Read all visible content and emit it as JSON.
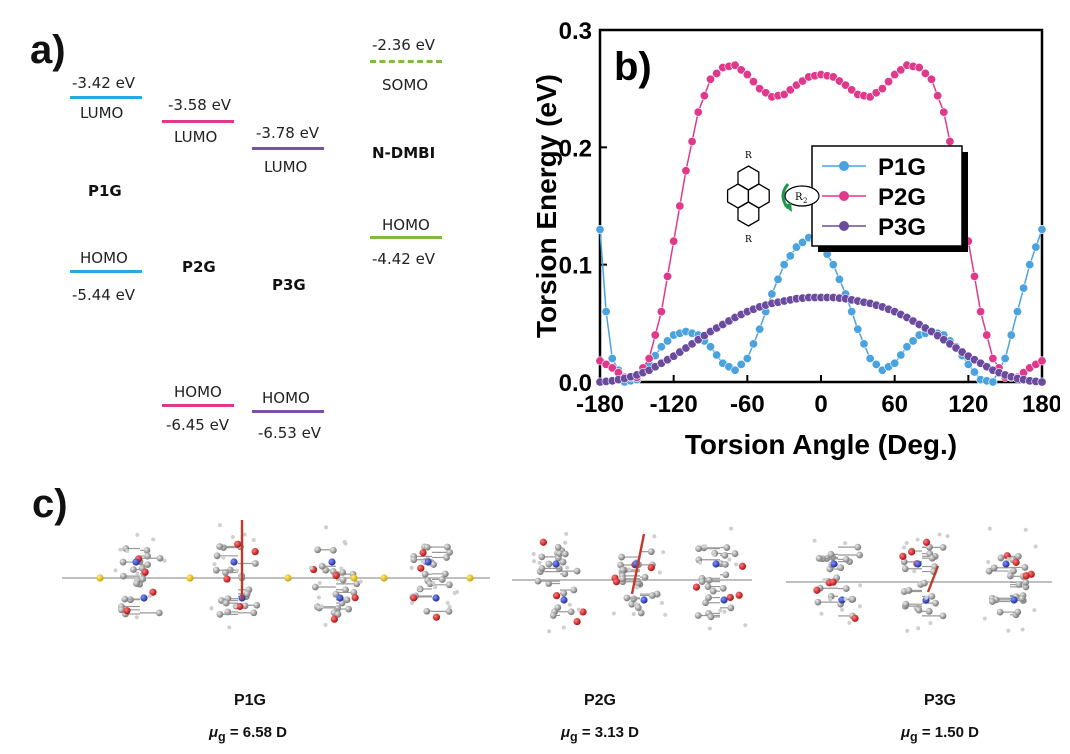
{
  "panel_a": {
    "label": "a)",
    "p1g": {
      "name": "P1G",
      "lumo_energy": "-3.42 eV",
      "lumo_label": "LUMO",
      "homo_label": "HOMO",
      "homo_energy": "-5.44 eV",
      "color": "#29a8e0"
    },
    "p2g": {
      "name": "P2G",
      "lumo_energy": "-3.58 eV",
      "lumo_label": "LUMO",
      "homo_label": "HOMO",
      "homo_energy": "-6.45 eV",
      "color": "#e0398c"
    },
    "p3g": {
      "name": "P3G",
      "lumo_energy": "-3.78 eV",
      "lumo_label": "LUMO",
      "homo_label": "HOMO",
      "homo_energy": "-6.53 eV",
      "color": "#7b4fa8"
    },
    "ndmbi": {
      "name": "N-DMBI",
      "somo_energy": "-2.36 eV",
      "somo_label": "SOMO",
      "homo_label": "HOMO",
      "homo_energy": "-4.42 eV",
      "color": "#7dbb42"
    }
  },
  "panel_b_label": "b)",
  "molecule": {
    "r": "R",
    "r2": "R",
    "r2_sub": "2"
  },
  "chart_data": {
    "type": "line",
    "xlabel": "Torsion Angle (Deg.)",
    "ylabel": "Torsion Energy (eV)",
    "xlim": [
      -180,
      180
    ],
    "ylim": [
      0,
      0.3
    ],
    "xticks": [
      "-180",
      "-120",
      "-60",
      "0",
      "60",
      "120",
      "180"
    ],
    "yticks": [
      "0.0",
      "0.1",
      "0.2",
      "0.3"
    ],
    "legend": "top-right",
    "series": [
      {
        "name": "P1G",
        "color": "#4aa3df",
        "x": [
          -180,
          -175,
          -170,
          -160,
          -150,
          -140,
          -130,
          -120,
          -110,
          -100,
          -90,
          -80,
          -70,
          -60,
          -50,
          -40,
          -30,
          -20,
          -10,
          0,
          10,
          20,
          30,
          40,
          50,
          60,
          70,
          80,
          90,
          100,
          110,
          120,
          130,
          140,
          150,
          160,
          170,
          175,
          180
        ],
        "y": [
          0.13,
          0.06,
          0.02,
          0.0,
          0.002,
          0.015,
          0.03,
          0.04,
          0.043,
          0.04,
          0.03,
          0.016,
          0.01,
          0.02,
          0.045,
          0.075,
          0.1,
          0.115,
          0.123,
          0.118,
          0.1,
          0.075,
          0.045,
          0.02,
          0.01,
          0.016,
          0.03,
          0.04,
          0.043,
          0.04,
          0.03,
          0.015,
          0.002,
          0.0,
          0.02,
          0.06,
          0.1,
          0.115,
          0.13
        ]
      },
      {
        "name": "P2G",
        "color": "#e0398c",
        "x": [
          -180,
          -170,
          -160,
          -150,
          -140,
          -130,
          -120,
          -110,
          -100,
          -90,
          -80,
          -70,
          -60,
          -50,
          -40,
          -30,
          -20,
          -10,
          0,
          10,
          20,
          30,
          40,
          50,
          60,
          70,
          80,
          90,
          100,
          110,
          120,
          130,
          140,
          150,
          160,
          170,
          180
        ],
        "y": [
          0.018,
          0.012,
          0.004,
          0.004,
          0.02,
          0.06,
          0.12,
          0.18,
          0.23,
          0.258,
          0.268,
          0.27,
          0.262,
          0.25,
          0.243,
          0.245,
          0.253,
          0.26,
          0.262,
          0.26,
          0.253,
          0.245,
          0.243,
          0.25,
          0.262,
          0.27,
          0.268,
          0.258,
          0.23,
          0.18,
          0.12,
          0.06,
          0.02,
          0.004,
          0.004,
          0.012,
          0.018
        ]
      },
      {
        "name": "P3G",
        "color": "#6a4b9e",
        "x": [
          -180,
          -170,
          -160,
          -150,
          -140,
          -130,
          -120,
          -110,
          -100,
          -90,
          -80,
          -70,
          -60,
          -50,
          -40,
          -30,
          -20,
          -10,
          0,
          10,
          20,
          30,
          40,
          50,
          60,
          70,
          80,
          90,
          100,
          110,
          120,
          130,
          140,
          150,
          160,
          170,
          180
        ],
        "y": [
          0.0,
          0.001,
          0.003,
          0.006,
          0.01,
          0.016,
          0.022,
          0.029,
          0.036,
          0.043,
          0.049,
          0.055,
          0.06,
          0.064,
          0.067,
          0.069,
          0.071,
          0.072,
          0.072,
          0.072,
          0.071,
          0.069,
          0.067,
          0.064,
          0.06,
          0.055,
          0.049,
          0.043,
          0.036,
          0.029,
          0.022,
          0.016,
          0.01,
          0.006,
          0.003,
          0.001,
          0.0
        ]
      }
    ]
  },
  "panel_c": {
    "label": "c)",
    "items": [
      {
        "name": "P1G",
        "mu_prefix": "μ",
        "mu_sub": "g",
        "mu_value": " = 6.58 D"
      },
      {
        "name": "P2G",
        "mu_prefix": "μ",
        "mu_sub": "g",
        "mu_value": " = 3.13 D"
      },
      {
        "name": "P3G",
        "mu_prefix": "μ",
        "mu_sub": "g",
        "mu_value": " = 1.50 D"
      }
    ]
  }
}
